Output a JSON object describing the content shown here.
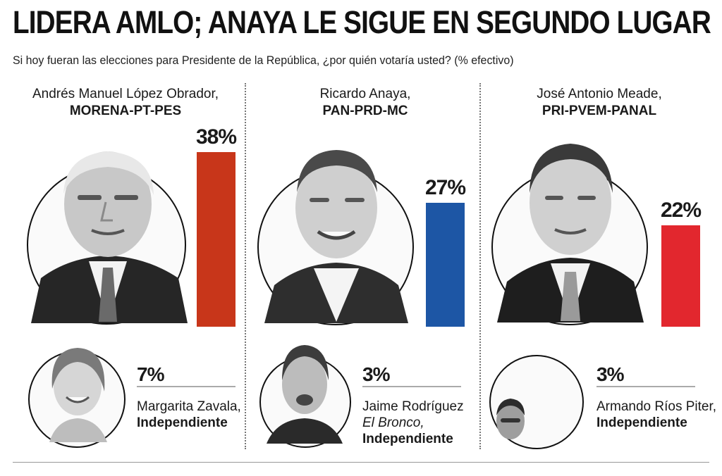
{
  "header": {
    "title": "LIDERA AMLO; ANAYA LE SIGUE EN SEGUNDO LUGAR",
    "subtitle": "Si hoy fueran las elecciones para Presidente de la República, ¿por quién votaría usted? (% efectivo)"
  },
  "colors": {
    "amlo": "#c8361a",
    "anaya": "#1d56a5",
    "meade": "#e2272e"
  },
  "chart_data": {
    "type": "bar",
    "title": "LIDERA AMLO; ANAYA LE SIGUE EN SEGUNDO LUGAR",
    "subtitle": "Si hoy fueran las elecciones para Presidente de la República, ¿por quién votaría usted? (% efectivo)",
    "unit": "%",
    "ylim": [
      0,
      38
    ],
    "grid": false,
    "categories": [
      "Andrés Manuel López Obrador",
      "Ricardo Anaya",
      "José Antonio Meade",
      "Margarita Zavala",
      "Jaime Rodríguez",
      "Armando Ríos Piter"
    ],
    "values": [
      38,
      27,
      22,
      7,
      3,
      3
    ],
    "labels": [
      "38%",
      "27%",
      "22%",
      "7%",
      "3%",
      "3%"
    ],
    "main": [
      {
        "name": "Andrés Manuel López Obrador,",
        "party": "MORENA-PT-PES",
        "value": 38,
        "label": "38%"
      },
      {
        "name": "Ricardo Anaya,",
        "party": "PAN-PRD-MC",
        "value": 27,
        "label": "27%"
      },
      {
        "name": "José Antonio Meade,",
        "party": "PRI-PVEM-PANAL",
        "value": 22,
        "label": "22%"
      }
    ],
    "minor": [
      {
        "name1": "Margarita",
        "name2": "Zavala,",
        "party": "Independiente",
        "value": 7,
        "label": "7%"
      },
      {
        "name1": "Jaime Rodríguez",
        "name2": "El Bronco,",
        "party": "Independiente",
        "value": 3,
        "label": "3%"
      },
      {
        "name1": "Armando Ríos",
        "name2": "Piter,",
        "party": "Independiente",
        "value": 3,
        "label": "3%"
      }
    ]
  }
}
